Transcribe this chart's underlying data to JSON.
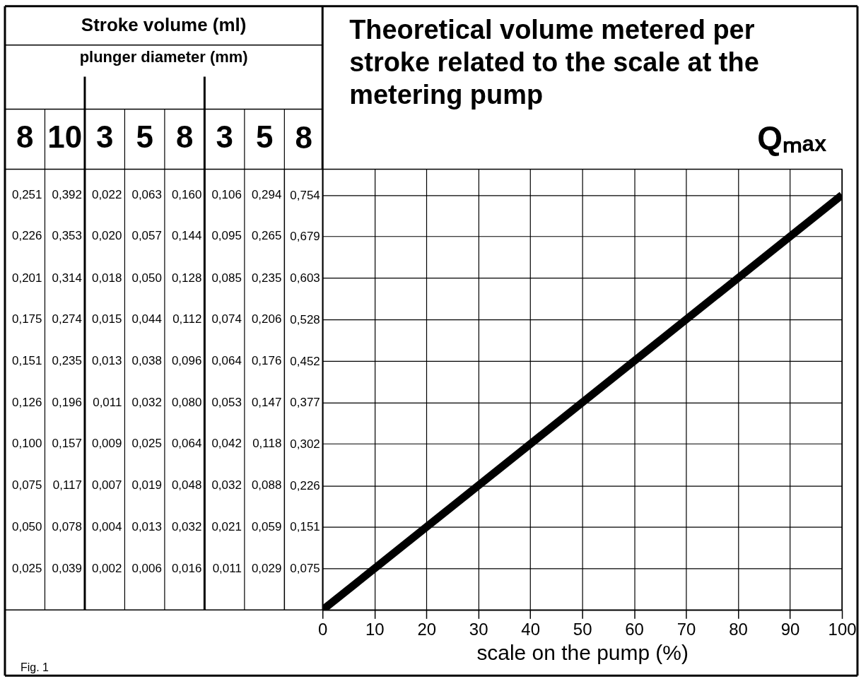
{
  "chart_data": [
    {
      "type": "other",
      "title": "Stroke volume (ml)",
      "subtitle": "plunger diameter (mm)",
      "annotations": [
        "8",
        "10",
        "3",
        "5",
        "8",
        "3",
        "5",
        "0,251",
        "0,392",
        "0,022",
        "0,063",
        "0,160",
        "0,106",
        "0,294",
        "0,226",
        "0,353",
        "0,020",
        "0,057",
        "0,144",
        "0,095",
        "0,265",
        "0,201",
        "0,314",
        "0,018",
        "0,050",
        "0,128",
        "0,085",
        "0,235",
        "0,175",
        "0,274",
        "0,015",
        "0,044",
        "0,112",
        "0,074",
        "0,206",
        "0,151",
        "0,235",
        "0,013",
        "0,038",
        "0,096",
        "0,064",
        "0,176",
        "0,126",
        "0,196",
        "0,011",
        "0,032",
        "0,080",
        "0,053",
        "0,147",
        "0,100",
        "0,157",
        "0,009",
        "0,025",
        "0,064",
        "0,042",
        "0,118",
        "0,075",
        "0,117",
        "0,007",
        "0,019",
        "0,048",
        "0,032",
        "0,088",
        "0,050",
        "0,078",
        "0,004",
        "0,013",
        "0,032",
        "0,021",
        "0,059",
        "0,025",
        "0,039",
        "0,002",
        "0,006",
        "0,016",
        "0,011",
        "0,029"
      ]
    },
    {
      "type": "line",
      "title": "Theoretical volume metered per stroke related to the scale at the metering pump",
      "xlabel": "scale on the pump (%)",
      "ylabel": "8",
      "annotations": [
        "Qₘₐₓ",
        "Fig. 1"
      ],
      "x": [
        0,
        100
      ],
      "series": [
        {
          "color": "#000000",
          "values": [
            0,
            0.754
          ]
        }
      ],
      "xlim": [
        0,
        100
      ],
      "xticks": [
        0,
        10,
        20,
        30,
        40,
        50,
        60,
        70,
        80,
        90,
        100
      ],
      "ylim": [
        0,
        0.801
      ],
      "yticks": [
        {
          "value": 0.075,
          "label": "0,075"
        },
        {
          "value": 0.151,
          "label": "0,151"
        },
        {
          "value": 0.226,
          "label": "0,226"
        },
        {
          "value": 0.302,
          "label": "0,302"
        },
        {
          "value": 0.377,
          "label": "0,377"
        },
        {
          "value": 0.452,
          "label": "0,452"
        },
        {
          "value": 0.528,
          "label": "0,528"
        },
        {
          "value": 0.603,
          "label": "0,603"
        },
        {
          "value": 0.679,
          "label": "0,679"
        },
        {
          "value": 0.754,
          "label": "0,754"
        }
      ],
      "grid": true
    }
  ]
}
